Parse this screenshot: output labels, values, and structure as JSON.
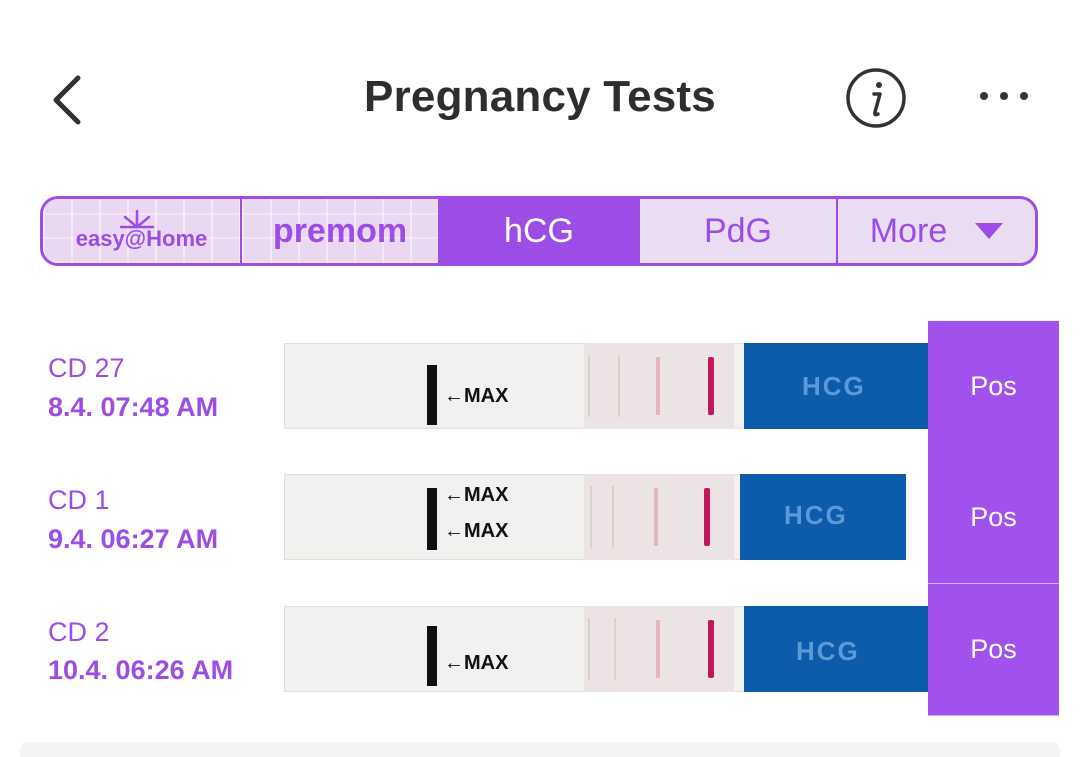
{
  "header": {
    "title": "Pregnancy Tests",
    "back_icon": "chevron-left-icon",
    "info_icon": "info-icon",
    "more_icon": "ellipsis-icon"
  },
  "tabs": {
    "easy_home": "easy@Home",
    "premom": "premom",
    "hcg": "hCG",
    "pdg": "PdG",
    "more": "More",
    "active": "hCG"
  },
  "tests": [
    {
      "cd": "CD 27",
      "datetime": "8.4.  07:48 AM",
      "result": "Pos",
      "max_labels": [
        "MAX"
      ],
      "strip_text": "HCG"
    },
    {
      "cd": "CD 1",
      "datetime": "9.4.  06:27 AM",
      "result": "Pos",
      "max_labels": [
        "MAX",
        "MAX"
      ],
      "strip_text": "HCG"
    },
    {
      "cd": "CD 2",
      "datetime": "10.4.  06:26 AM",
      "result": "Pos",
      "max_labels": [
        "MAX"
      ],
      "strip_text": "HCG"
    }
  ],
  "colors": {
    "accent": "#9b4de6",
    "result_bg": "#a152ec",
    "title": "#2e2e2e"
  }
}
